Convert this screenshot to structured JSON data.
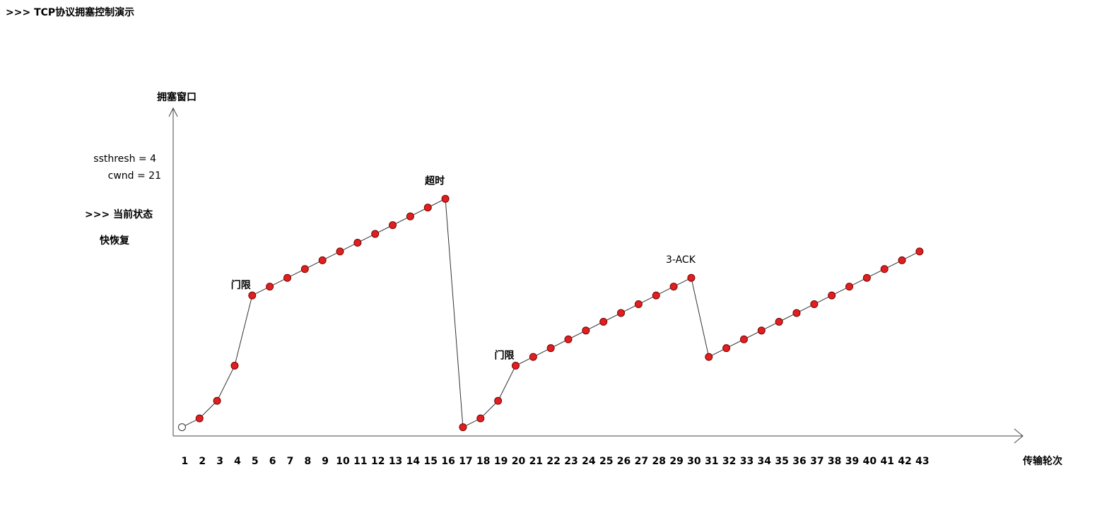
{
  "header": {
    "title": ">>> TCP协议拥塞控制演示"
  },
  "status": {
    "ssthresh": "ssthresh = 4",
    "cwnd": "cwnd = 21",
    "label": ">>> 当前状态",
    "state": "快恢复"
  },
  "chart_data": {
    "type": "line",
    "y_label": "拥塞窗口",
    "x_label": "传输轮次",
    "x": [
      1,
      2,
      3,
      4,
      5,
      6,
      7,
      8,
      9,
      10,
      11,
      12,
      13,
      14,
      15,
      16,
      17,
      18,
      19,
      20,
      21,
      22,
      23,
      24,
      25,
      26,
      27,
      28,
      29,
      30,
      31,
      32,
      33,
      34,
      35,
      36,
      37,
      38,
      39,
      40,
      41,
      42,
      43
    ],
    "series": [
      {
        "color": "#e02020",
        "values": [
          1,
          2,
          4,
          8,
          16,
          17,
          18,
          19,
          20,
          21,
          22,
          23,
          24,
          25,
          26,
          27,
          1,
          2,
          4,
          8,
          9,
          10,
          11,
          12,
          13,
          14,
          15,
          16,
          17,
          18,
          9,
          10,
          11,
          12,
          13,
          14,
          15,
          16,
          17,
          18,
          19,
          20,
          21
        ]
      }
    ],
    "xlim": [
      0.5,
      48.8
    ],
    "ylim": [
      0,
      37
    ],
    "annotations": [
      {
        "text": "门限",
        "x": 5
      },
      {
        "text": "超时",
        "x": 16
      },
      {
        "text": "门限",
        "x": 20
      },
      {
        "text": "3-ACK",
        "x": 30
      }
    ]
  }
}
